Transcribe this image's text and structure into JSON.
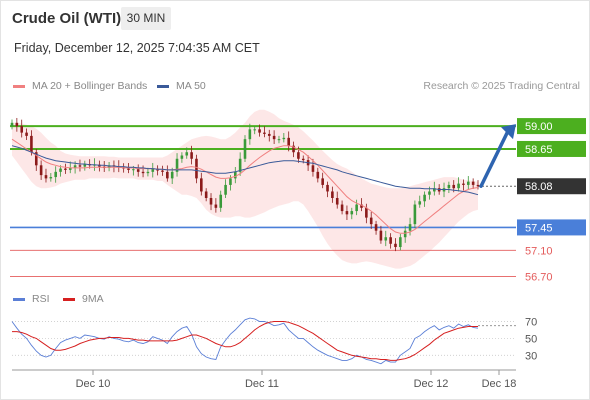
{
  "header": {
    "title": "Crude Oil (WTI)",
    "timeframe": "30 MIN",
    "datetime": "Friday, December 12, 2025 7:04:35 AM CET",
    "credit": "Research © 2025 Trading Central"
  },
  "legend": {
    "ma20_label": "MA 20 + Bollinger Bands",
    "ma50_label": "MA 50",
    "rsi_label": "RSI",
    "rsi_ma_label": "9MA"
  },
  "colors": {
    "ma20": "#f08080",
    "ma50": "#3a5a99",
    "bollinger_fill": "#fde3e3",
    "resistance": "#4caf1f",
    "support": "#4a7fd9",
    "minor_support": "#e45c5c",
    "current": "#333333",
    "arrow": "#2e64b0",
    "bull_candle": "#3a9a3a",
    "bear_candle": "#8b1a1a",
    "rsi": "#5b7fd6",
    "rsi_ma": "#d62020"
  },
  "chart_data": [
    {
      "type": "candlestick",
      "title": "Crude Oil (WTI)",
      "timeframe": "30 MIN",
      "x_tick_labels": [
        "Dec 10",
        "Dec 11",
        "Dec 12",
        "Dec 18"
      ],
      "y_range": [
        56.6,
        59.2
      ],
      "levels": [
        {
          "value": 59.0,
          "label": "59.00",
          "kind": "resistance"
        },
        {
          "value": 58.65,
          "label": "58.65",
          "kind": "resistance"
        },
        {
          "value": 58.08,
          "label": "58.08",
          "kind": "current"
        },
        {
          "value": 57.45,
          "label": "57.45",
          "kind": "support"
        },
        {
          "value": 57.1,
          "label": "57.10",
          "kind": "minor_support"
        },
        {
          "value": 56.7,
          "label": "56.70",
          "kind": "minor_support"
        }
      ],
      "forecast_arrow": {
        "from": 58.08,
        "to": 59.0
      },
      "close_series": [
        59.05,
        59.0,
        58.9,
        58.85,
        58.6,
        58.4,
        58.25,
        58.2,
        58.22,
        58.3,
        58.35,
        58.33,
        58.36,
        58.4,
        58.38,
        58.42,
        58.4,
        58.41,
        58.38,
        58.36,
        58.4,
        58.38,
        58.37,
        58.35,
        58.33,
        58.34,
        58.3,
        58.28,
        58.3,
        58.35,
        58.32,
        58.3,
        58.2,
        58.3,
        58.5,
        58.55,
        58.6,
        58.5,
        58.2,
        58.0,
        57.9,
        57.8,
        57.75,
        57.95,
        58.1,
        58.2,
        58.3,
        58.5,
        58.8,
        58.95,
        58.95,
        58.9,
        58.88,
        58.85,
        58.8,
        58.8,
        58.82,
        58.7,
        58.6,
        58.5,
        58.48,
        58.4,
        58.3,
        58.2,
        58.1,
        58.0,
        57.9,
        57.8,
        57.7,
        57.65,
        57.7,
        57.8,
        57.75,
        57.6,
        57.5,
        57.4,
        57.25,
        57.3,
        57.2,
        57.15,
        57.3,
        57.4,
        57.5,
        57.8,
        57.85,
        57.95,
        58.0,
        58.05,
        58.0,
        58.05,
        58.1,
        58.05,
        58.12,
        58.1,
        58.15,
        58.1,
        58.08
      ],
      "series": [
        {
          "name": "MA 20 + Bollinger Bands",
          "values": [
            58.8,
            58.75,
            58.7,
            58.65,
            58.6,
            58.55,
            58.5,
            58.45,
            58.42,
            58.4,
            58.38,
            58.37,
            58.36,
            58.36,
            58.36,
            58.36,
            58.37,
            58.37,
            58.37,
            58.37,
            58.37,
            58.37,
            58.37,
            58.36,
            58.36,
            58.36,
            58.35,
            58.35,
            58.35,
            58.35,
            58.34,
            58.34,
            58.33,
            58.33,
            58.34,
            58.35,
            58.37,
            58.38,
            58.37,
            58.34,
            58.3,
            58.26,
            58.22,
            58.2,
            58.2,
            58.21,
            58.23,
            58.27,
            58.33,
            58.4,
            58.46,
            58.52,
            58.57,
            58.62,
            58.66,
            58.68,
            58.7,
            58.7,
            58.68,
            58.64,
            58.6,
            58.54,
            58.47,
            58.4,
            58.32,
            58.24,
            58.16,
            58.08,
            58.0,
            57.92,
            57.86,
            57.82,
            57.79,
            57.75,
            57.7,
            57.64,
            57.57,
            57.5,
            57.43,
            57.38,
            57.36,
            57.36,
            57.38,
            57.42,
            57.48,
            57.54,
            57.6,
            57.66,
            57.72,
            57.78,
            57.84,
            57.9,
            57.96,
            58.0,
            58.03,
            58.05,
            58.06
          ]
        },
        {
          "name": "MA 50",
          "values": [
            58.7,
            58.68,
            58.66,
            58.63,
            58.6,
            58.57,
            58.54,
            58.51,
            58.49,
            58.47,
            58.46,
            58.45,
            58.44,
            58.43,
            58.42,
            58.42,
            58.41,
            58.41,
            58.4,
            58.4,
            58.39,
            58.39,
            58.38,
            58.38,
            58.37,
            58.37,
            58.36,
            58.36,
            58.35,
            58.35,
            58.34,
            58.34,
            58.33,
            58.33,
            58.33,
            58.33,
            58.33,
            58.33,
            58.32,
            58.31,
            58.3,
            58.29,
            58.28,
            58.28,
            58.28,
            58.29,
            58.3,
            58.32,
            58.34,
            58.36,
            58.38,
            58.4,
            58.42,
            58.44,
            58.45,
            58.46,
            58.47,
            58.47,
            58.47,
            58.46,
            58.45,
            58.44,
            58.43,
            58.41,
            58.39,
            58.37,
            58.35,
            58.33,
            58.3,
            58.28,
            58.26,
            58.24,
            58.22,
            58.2,
            58.18,
            58.16,
            58.14,
            58.12,
            58.1,
            58.08,
            58.07,
            58.06,
            58.05,
            58.05,
            58.05,
            58.04,
            58.04,
            58.04,
            58.03,
            58.03,
            58.03,
            58.02,
            58.01,
            58.0,
            57.99,
            57.97,
            57.95
          ]
        }
      ],
      "bollinger": {
        "upper": [
          59.05,
          59.05,
          59.04,
          59.02,
          59.0,
          58.96,
          58.9,
          58.82,
          58.75,
          58.7,
          58.62,
          58.58,
          58.56,
          58.55,
          58.54,
          58.54,
          58.54,
          58.54,
          58.54,
          58.54,
          58.53,
          58.53,
          58.52,
          58.52,
          58.52,
          58.52,
          58.52,
          58.52,
          58.52,
          58.52,
          58.52,
          58.52,
          58.55,
          58.6,
          58.65,
          58.7,
          58.75,
          58.8,
          58.82,
          58.84,
          58.85,
          58.84,
          58.82,
          58.8,
          58.8,
          58.84,
          58.9,
          58.98,
          59.05,
          59.15,
          59.22,
          59.25,
          59.25,
          59.22,
          59.18,
          59.12,
          59.08,
          59.05,
          59.02,
          58.98,
          58.92,
          58.85,
          58.78,
          58.7,
          58.62,
          58.55,
          58.48,
          58.42,
          58.38,
          58.35,
          58.3,
          58.25,
          58.2,
          58.16,
          58.12,
          58.1,
          58.08,
          58.06,
          58.05,
          58.05,
          58.05,
          58.06,
          58.08,
          58.1,
          58.12,
          58.14,
          58.16,
          58.18,
          58.2,
          58.22,
          58.22,
          58.22,
          58.2,
          58.18,
          58.17,
          58.16,
          58.15
        ],
        "lower": [
          58.55,
          58.45,
          58.35,
          58.25,
          58.15,
          58.08,
          58.05,
          58.05,
          58.06,
          58.08,
          58.12,
          58.14,
          58.16,
          58.18,
          58.18,
          58.18,
          58.2,
          58.2,
          58.2,
          58.2,
          58.2,
          58.21,
          58.2,
          58.2,
          58.2,
          58.2,
          58.18,
          58.18,
          58.18,
          58.18,
          58.16,
          58.16,
          58.1,
          58.05,
          58.0,
          57.95,
          57.95,
          57.93,
          57.9,
          57.82,
          57.72,
          57.66,
          57.62,
          57.6,
          57.6,
          57.6,
          57.62,
          57.62,
          57.6,
          57.6,
          57.62,
          57.65,
          57.68,
          57.72,
          57.75,
          57.78,
          57.8,
          57.82,
          57.85,
          57.85,
          57.8,
          57.7,
          57.58,
          57.46,
          57.32,
          57.2,
          57.1,
          57.02,
          56.95,
          56.92,
          56.9,
          56.9,
          56.92,
          56.93,
          56.92,
          56.9,
          56.88,
          56.86,
          56.84,
          56.82,
          56.82,
          56.84,
          56.86,
          56.9,
          56.96,
          57.02,
          57.08,
          57.15,
          57.22,
          57.3,
          57.38,
          57.46,
          57.54,
          57.6,
          57.66,
          57.7,
          57.72
        ]
      }
    },
    {
      "type": "line",
      "title": "RSI",
      "y_range": [
        15,
        80
      ],
      "y_tick_labels": [
        "70",
        "50",
        "30"
      ],
      "series": [
        {
          "name": "RSI",
          "values": [
            70,
            62,
            55,
            50,
            42,
            35,
            30,
            28,
            30,
            38,
            45,
            48,
            50,
            52,
            50,
            54,
            53,
            52,
            50,
            49,
            52,
            50,
            49,
            47,
            46,
            48,
            45,
            44,
            46,
            52,
            50,
            48,
            44,
            52,
            58,
            62,
            64,
            55,
            40,
            32,
            28,
            26,
            25,
            40,
            48,
            55,
            60,
            66,
            72,
            74,
            73,
            70,
            70,
            68,
            65,
            66,
            68,
            60,
            55,
            50,
            50,
            45,
            40,
            36,
            33,
            30,
            28,
            26,
            24,
            24,
            26,
            30,
            28,
            25,
            24,
            22,
            20,
            24,
            22,
            22,
            30,
            34,
            38,
            50,
            53,
            58,
            62,
            65,
            60,
            63,
            65,
            62,
            67,
            64,
            66,
            63,
            62
          ]
        },
        {
          "name": "9MA",
          "values": [
            58,
            58,
            57,
            55,
            52,
            50,
            46,
            42,
            38,
            36,
            36,
            37,
            39,
            41,
            44,
            46,
            48,
            49,
            50,
            50,
            51,
            51,
            51,
            50,
            50,
            49,
            48,
            48,
            47,
            47,
            47,
            47,
            47,
            47,
            48,
            50,
            52,
            54,
            54,
            52,
            50,
            47,
            44,
            42,
            40,
            40,
            42,
            45,
            50,
            55,
            60,
            64,
            67,
            69,
            70,
            70,
            70,
            69,
            67,
            65,
            62,
            59,
            56,
            52,
            48,
            44,
            40,
            36,
            34,
            32,
            30,
            29,
            28,
            27,
            26,
            26,
            25,
            25,
            24,
            24,
            25,
            26,
            28,
            31,
            35,
            39,
            43,
            48,
            52,
            56,
            58,
            60,
            62,
            63,
            64,
            64,
            64
          ]
        }
      ],
      "reference_level": 65
    }
  ]
}
